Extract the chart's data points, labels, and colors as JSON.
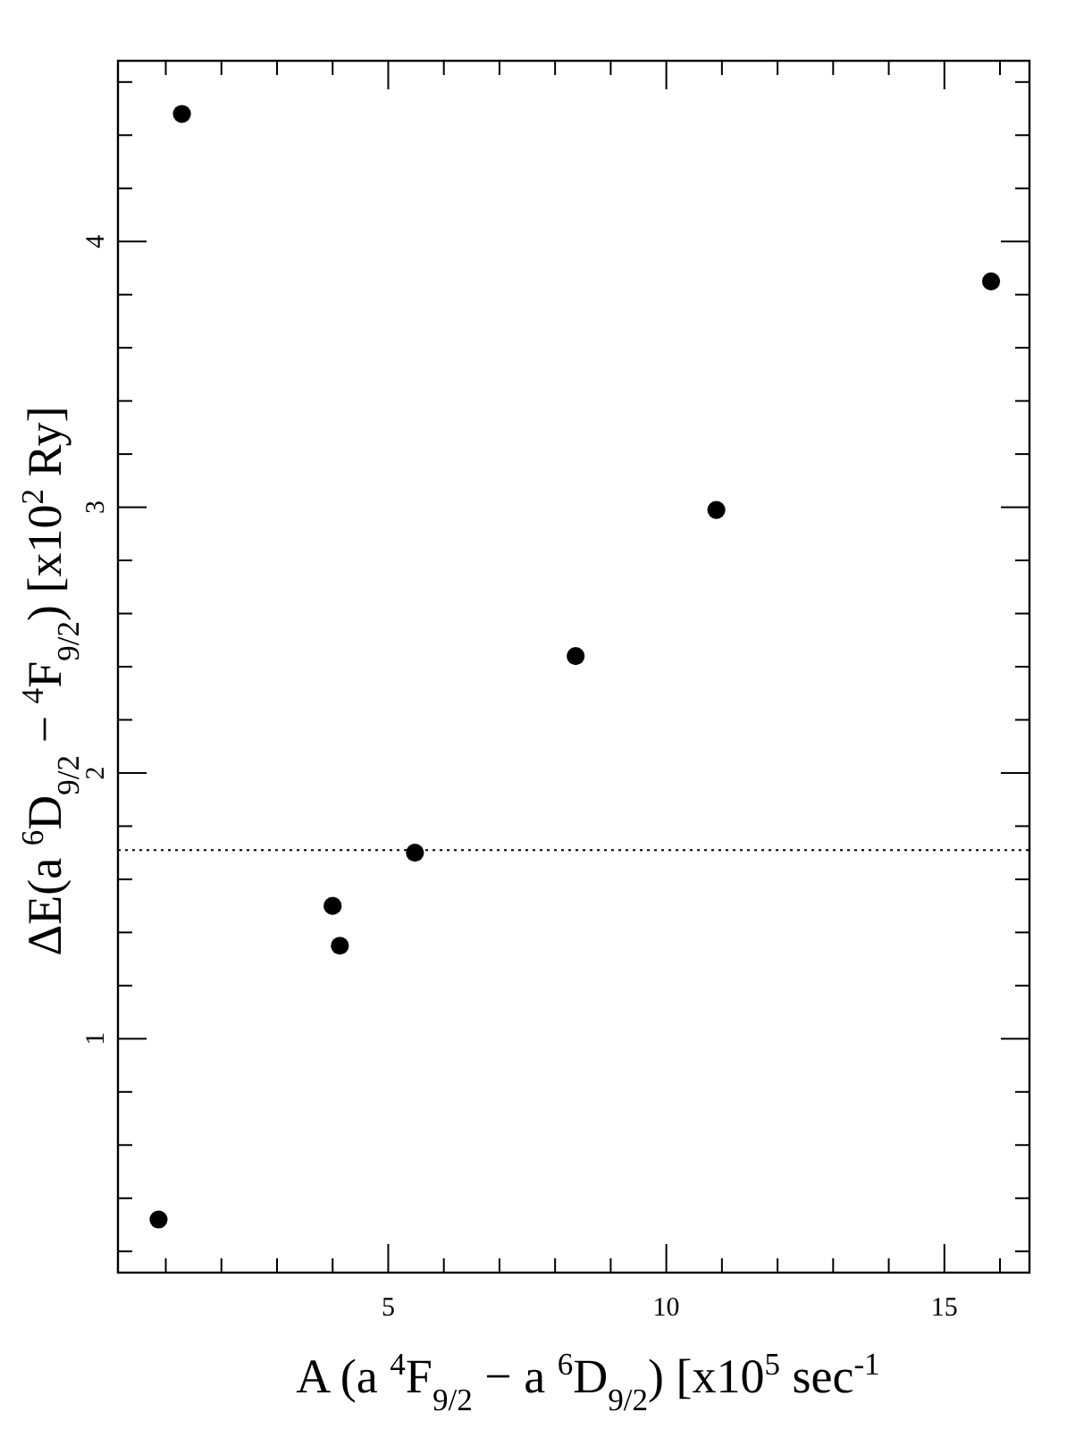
{
  "chart_data": {
    "type": "scatter",
    "xlabel": "A (a $^{4}$F$_{9/2}$ − a $^{6}$D$_{9/2}$) [x10$^{5}$ sec$^{-1}$",
    "ylabel": "ΔE(a $^{6}$D$_{9/2}$ − $^{4}$F$_{9/2}$) [x10$^{2}$ Ry]",
    "x": [
      0.87,
      1.29,
      4.0,
      4.13,
      5.48,
      8.37,
      10.9,
      15.84
    ],
    "series": [
      {
        "color": "#000000",
        "values": [
          0.32,
          4.48,
          1.5,
          1.35,
          1.7,
          2.44,
          2.99,
          3.85
        ]
      }
    ],
    "marker": "circle",
    "grid": false,
    "xlim": [
      0.14,
      16.53
    ],
    "ylim": [
      0.12,
      4.68
    ],
    "xticks": [
      {
        "value": 1,
        "label": null
      },
      {
        "value": 2,
        "label": null
      },
      {
        "value": 3,
        "label": null
      },
      {
        "value": 4,
        "label": null
      },
      5,
      {
        "value": 6,
        "label": null
      },
      {
        "value": 7,
        "label": null
      },
      {
        "value": 8,
        "label": null
      },
      {
        "value": 9,
        "label": null
      },
      10,
      {
        "value": 11,
        "label": null
      },
      {
        "value": 12,
        "label": null
      },
      {
        "value": 13,
        "label": null
      },
      {
        "value": 14,
        "label": null
      },
      15,
      {
        "value": 16,
        "label": null
      }
    ],
    "yticks": [
      {
        "value": 0.2,
        "label": null
      },
      {
        "value": 0.4,
        "label": null
      },
      {
        "value": 0.6,
        "label": null
      },
      {
        "value": 0.8,
        "label": null
      },
      1,
      {
        "value": 1.2,
        "label": null
      },
      {
        "value": 1.4,
        "label": null
      },
      {
        "value": 1.6,
        "label": null
      },
      {
        "value": 1.8,
        "label": null
      },
      2,
      {
        "value": 2.2,
        "label": null
      },
      {
        "value": 2.4,
        "label": null
      },
      {
        "value": 2.6,
        "label": null
      },
      {
        "value": 2.8,
        "label": null
      },
      3,
      {
        "value": 3.2,
        "label": null
      },
      {
        "value": 3.4,
        "label": null
      },
      {
        "value": 3.6,
        "label": null
      },
      {
        "value": 3.8,
        "label": null
      },
      4,
      {
        "value": 4.2,
        "label": null
      },
      {
        "value": 4.4,
        "label": null
      },
      {
        "value": 4.6,
        "label": null
      }
    ],
    "ref_lines": [
      {
        "axis": "y",
        "value": 1.71,
        "line_style": "dotted",
        "color": "#000000"
      }
    ]
  }
}
